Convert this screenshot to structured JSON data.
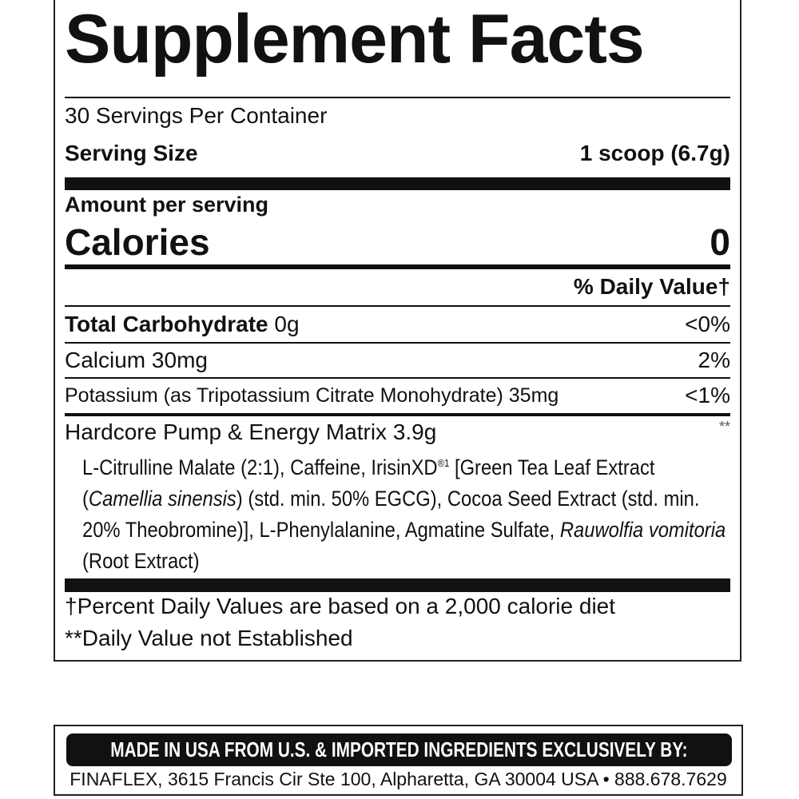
{
  "title": "Supplement Facts",
  "servings_per_container": "30 Servings Per Container",
  "serving_size": {
    "label": "Serving Size",
    "value": "1 scoop (6.7g)"
  },
  "amount_per_serving": "Amount per serving",
  "calories": {
    "label": "Calories",
    "value": "0"
  },
  "daily_value_header": "% Daily Value†",
  "nutrients": [
    {
      "name": "Total Carbohydrate",
      "amount": "0g",
      "dv": "<0%",
      "bold": true
    },
    {
      "name": "Calcium",
      "amount": "30mg",
      "dv": "2%"
    },
    {
      "name": "Potassium (as Tripotassium Citrate Monohydrate)",
      "amount": "35mg",
      "dv": "<1%"
    }
  ],
  "blend": {
    "name": "Hardcore Pump & Energy Matrix 3.9g",
    "dv": "**",
    "ingredients": [
      {
        "text": "L-Citrulline Malate (2:1), Caffeine, IrisinXD",
        "italic": false
      },
      {
        "text": "®1",
        "sup": true
      },
      {
        "text": " [Green Tea Leaf Extract (",
        "italic": false
      },
      {
        "text": "Camellia sinensis",
        "italic": true
      },
      {
        "text": ") (std. min. 50% EGCG), Cocoa Seed Extract (std. min. 20% Theobromine)], L-Phenylalanine, Agmatine Sulfate, ",
        "italic": false
      },
      {
        "text": "Rauwolfia vomitoria",
        "italic": true
      },
      {
        "text": " (Root Extract)",
        "italic": false
      }
    ]
  },
  "footnotes": [
    "†Percent Daily Values are based on a 2,000 calorie diet",
    "**Daily Value not Established"
  ],
  "footer": {
    "made_in": "MADE IN USA FROM U.S. & IMPORTED INGREDIENTS EXCLUSIVELY BY:",
    "address": "FINAFLEX, 3615 Francis Cir Ste 100, Alpharetta, GA 30004 USA • 888.678.7629"
  }
}
